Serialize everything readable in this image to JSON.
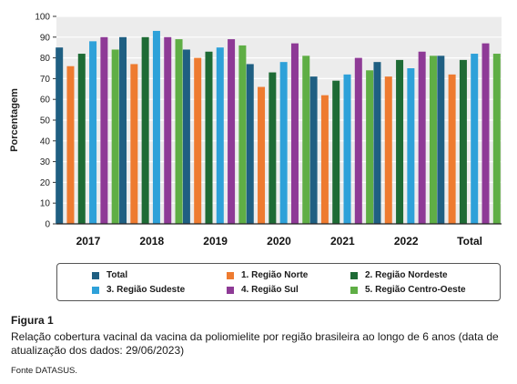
{
  "chart_data": {
    "type": "bar",
    "ylabel": "Porcentagem",
    "ylim": [
      0,
      100
    ],
    "yticks": [
      0,
      10,
      20,
      30,
      40,
      50,
      60,
      70,
      80,
      90,
      100
    ],
    "grid": true,
    "legend_placement": "bottom",
    "categories": [
      "2017",
      "2018",
      "2019",
      "2020",
      "2021",
      "2022",
      "Total"
    ],
    "series": [
      {
        "name": "Total",
        "color": "#1f5f82",
        "values": [
          85,
          90,
          84,
          77,
          71,
          78,
          81
        ]
      },
      {
        "name": "1. Região Norte",
        "color": "#ee7b30",
        "values": [
          76,
          77,
          80,
          66,
          62,
          71,
          72
        ]
      },
      {
        "name": "2. Região Nordeste",
        "color": "#1e6b35",
        "values": [
          82,
          90,
          83,
          73,
          69,
          79,
          79
        ]
      },
      {
        "name": "3. Região Sudeste",
        "color": "#2ea1d9",
        "values": [
          88,
          93,
          85,
          78,
          72,
          75,
          82
        ]
      },
      {
        "name": "4. Região Sul",
        "color": "#8e3a96",
        "values": [
          90,
          90,
          89,
          87,
          80,
          83,
          87
        ]
      },
      {
        "name": "5. Região Centro-Oeste",
        "color": "#5fae45",
        "values": [
          84,
          89,
          86,
          81,
          74,
          81,
          82
        ]
      }
    ]
  },
  "caption": {
    "figure_label": "Figura 1",
    "text": "Relação cobertura vacinal da vacina da poliomielite por região brasileira ao longo de 6 anos (data de atualização dos dados: 29/06/2023)",
    "source": "Fonte DATASUS."
  }
}
